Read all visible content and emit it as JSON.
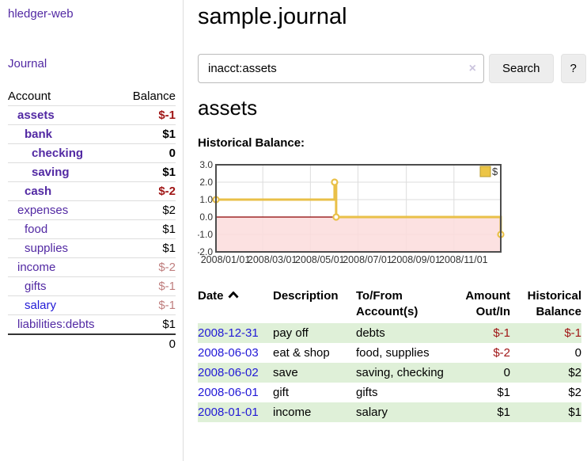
{
  "app": {
    "title": "hledger-web"
  },
  "sidebar": {
    "journal_link": "Journal",
    "accounts_table": {
      "headers": {
        "account": "Account",
        "balance": "Balance"
      },
      "rows": [
        {
          "name": "assets",
          "depth": 1,
          "bold": true,
          "link": "purple",
          "balance": "$-1",
          "balance_class": "neg-strong"
        },
        {
          "name": "bank",
          "depth": 2,
          "bold": true,
          "link": "purple",
          "balance": "$1",
          "balance_class": "normal"
        },
        {
          "name": "checking",
          "depth": 3,
          "bold": true,
          "link": "purple",
          "balance": "0",
          "balance_class": "normal"
        },
        {
          "name": "saving",
          "depth": 3,
          "bold": true,
          "link": "purple",
          "balance": "$1",
          "balance_class": "normal"
        },
        {
          "name": "cash",
          "depth": 2,
          "bold": true,
          "link": "purple",
          "balance": "$-2",
          "balance_class": "neg-strong"
        },
        {
          "name": "expenses",
          "depth": 1,
          "bold": false,
          "link": "purple",
          "balance": "$2",
          "balance_class": "normal"
        },
        {
          "name": "food",
          "depth": 2,
          "bold": false,
          "link": "purple",
          "balance": "$1",
          "balance_class": "normal"
        },
        {
          "name": "supplies",
          "depth": 2,
          "bold": false,
          "link": "purple",
          "balance": "$1",
          "balance_class": "normal"
        },
        {
          "name": "income",
          "depth": 1,
          "bold": false,
          "link": "purple",
          "balance": "$-2",
          "balance_class": "neg-soft"
        },
        {
          "name": "gifts",
          "depth": 2,
          "bold": false,
          "link": "purple",
          "balance": "$-1",
          "balance_class": "neg-soft"
        },
        {
          "name": "salary",
          "depth": 2,
          "bold": false,
          "link": "blue",
          "balance": "$-1",
          "balance_class": "neg-soft"
        },
        {
          "name": "liabilities:debts",
          "depth": 1,
          "bold": false,
          "link": "purple",
          "balance": "$1",
          "balance_class": "normal"
        }
      ],
      "total": "0"
    }
  },
  "main": {
    "title": "sample.journal",
    "search": {
      "value": "inacct:assets",
      "clear_icon": "×",
      "button": "Search",
      "help_button": "?"
    },
    "account_heading": "assets",
    "chart_label": "Historical Balance:"
  },
  "chart_data": {
    "type": "line",
    "step": "step-after",
    "title": "Historical Balance",
    "legend": {
      "label": "$",
      "position": "top-right"
    },
    "xlim": [
      "2008-01-01",
      "2008-12-31"
    ],
    "ylim": [
      -2,
      3
    ],
    "yticks": [
      3.0,
      2.0,
      1.0,
      0.0,
      -1.0,
      -2.0
    ],
    "xticks": [
      "2008/01/01",
      "2008/03/01",
      "2008/05/01",
      "2008/07/01",
      "2008/09/01",
      "2008/11/01"
    ],
    "series": [
      {
        "name": "$",
        "points": [
          [
            "2008-01-01",
            1
          ],
          [
            "2008-06-01",
            2
          ],
          [
            "2008-06-03",
            0
          ],
          [
            "2008-12-31",
            -1
          ]
        ]
      }
    ],
    "negative_region_shaded": true,
    "grid": true
  },
  "transactions": {
    "headers": {
      "date": "Date",
      "description": "Description",
      "tofrom": "To/From Account(s)",
      "amount": "Amount Out/In",
      "balance": "Historical Balance"
    },
    "rows": [
      {
        "date": "2008-12-31",
        "description": "pay off",
        "accounts": "debts",
        "amount": "$-1",
        "amount_negative": true,
        "balance": "$-1",
        "balance_negative": true
      },
      {
        "date": "2008-06-03",
        "description": "eat & shop",
        "accounts": "food, supplies",
        "amount": "$-2",
        "amount_negative": true,
        "balance": "0",
        "balance_negative": false
      },
      {
        "date": "2008-06-02",
        "description": "save",
        "accounts": "saving, checking",
        "amount": "0",
        "amount_negative": false,
        "balance": "$2",
        "balance_negative": false
      },
      {
        "date": "2008-06-01",
        "description": "gift",
        "accounts": "gifts",
        "amount": "$1",
        "amount_negative": false,
        "balance": "$2",
        "balance_negative": false
      },
      {
        "date": "2008-01-01",
        "description": "income",
        "accounts": "salary",
        "amount": "$1",
        "amount_negative": false,
        "balance": "$1",
        "balance_negative": false
      }
    ]
  },
  "colors": {
    "link_purple": "#5229a3",
    "link_blue": "#2119d6",
    "negative_strong": "#a01616",
    "negative_soft": "#bf7e7e",
    "row_stripe_green": "#dff0d8",
    "chart_line": "#e9c048",
    "chart_marker_fill": "#ffffff",
    "chart_legend_fill": "#ecc546",
    "chart_legend_border": "#b89b2e",
    "chart_negative_bg": "#fbdcdc",
    "chart_zero_line": "#8b0000",
    "chart_border": "#4d4d4d",
    "chart_grid": "#dddddd",
    "chart_text": "#333333"
  }
}
